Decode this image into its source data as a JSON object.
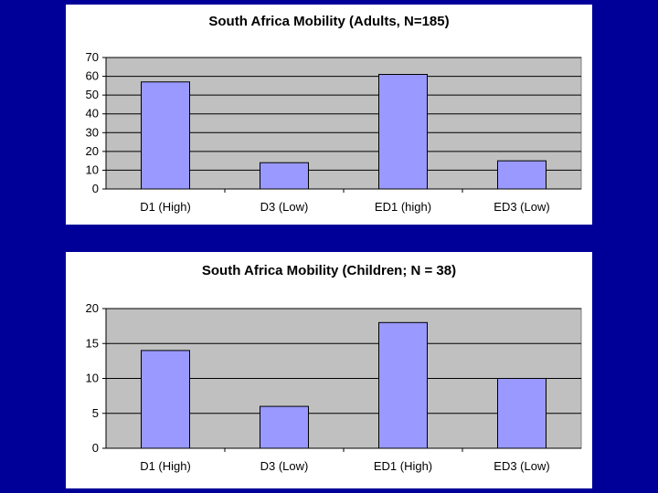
{
  "colors": {
    "background": "#000099",
    "panel": "#ffffff",
    "plot_area": "#c0c0c0",
    "bar_fill": "#9999ff",
    "bar_stroke": "#000000",
    "gridline": "#000000"
  },
  "chart_data": [
    {
      "type": "bar",
      "title": "South Africa Mobility (Adults, N=185)",
      "categories": [
        "D1 (High)",
        "D3 (Low)",
        "ED1 (high)",
        "ED3 (Low)"
      ],
      "values": [
        57,
        14,
        61,
        15
      ],
      "yticks": [
        0,
        10,
        20,
        30,
        40,
        50,
        60,
        70
      ],
      "ylim": [
        0,
        70
      ],
      "grid": true,
      "legend": "none"
    },
    {
      "type": "bar",
      "title": "South Africa Mobility (Children; N = 38)",
      "categories": [
        "D1 (High)",
        "D3 (Low)",
        "ED1 (High)",
        "ED3 (Low)"
      ],
      "values": [
        14,
        6,
        18,
        10
      ],
      "yticks": [
        0,
        5,
        10,
        15,
        20
      ],
      "ylim": [
        0,
        20
      ],
      "grid": true,
      "legend": "none"
    }
  ]
}
